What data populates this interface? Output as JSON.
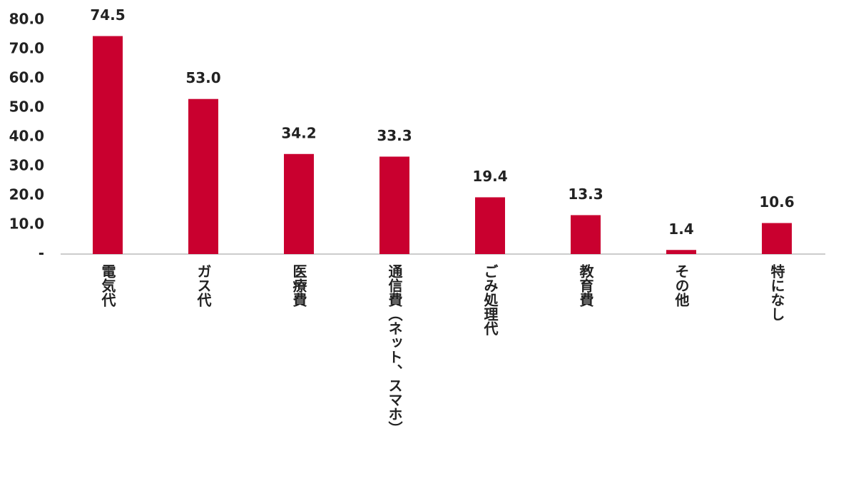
{
  "chart_data": {
    "type": "bar",
    "categories": [
      "電気代",
      "ガス代",
      "医療費",
      "通信費（ネット、スマホ）",
      "ごみ処理代",
      "教育費",
      "その他",
      "特になし"
    ],
    "values": [
      74.5,
      53.0,
      34.2,
      33.3,
      19.4,
      13.3,
      1.4,
      10.6
    ],
    "value_labels": [
      "74.5",
      "53.0",
      "34.2",
      "33.3",
      "19.4",
      "13.3",
      "1.4",
      "10.6"
    ],
    "color": "#c9002f",
    "ylim": [
      0,
      80
    ],
    "yticks": [
      {
        "value": 0,
        "label": "-"
      },
      {
        "value": 10,
        "label": "10.0"
      },
      {
        "value": 20,
        "label": "20.0"
      },
      {
        "value": 30,
        "label": "30.0"
      },
      {
        "value": 40,
        "label": "40.0"
      },
      {
        "value": 50,
        "label": "50.0"
      },
      {
        "value": 60,
        "label": "60.0"
      },
      {
        "value": 70,
        "label": "70.0"
      },
      {
        "value": 80,
        "label": "80.0"
      }
    ],
    "grid": false
  }
}
